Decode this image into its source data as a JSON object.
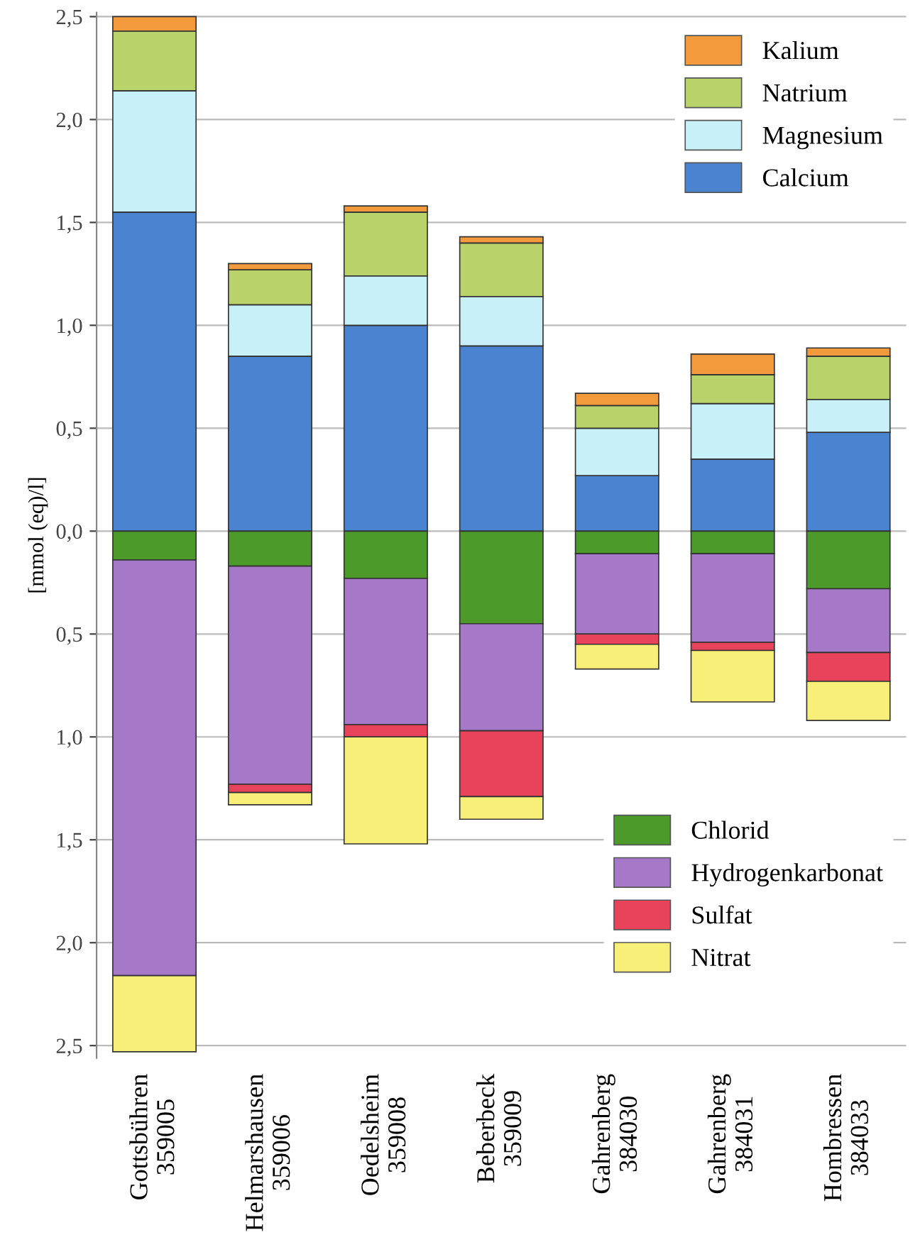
{
  "chart_data": {
    "type": "bar",
    "stacked": true,
    "ylabel": "[mmol (eq)/l]",
    "categories": [
      "Gottsbühren\n359005",
      "Helmarshausen\n359006",
      "Oedelsheim\n359008",
      "Beberbeck\n359009",
      "Gahrenberg\n384030",
      "Gahrenberg\n384031",
      "Hombressen\n384033"
    ],
    "series": [
      {
        "name": "Calcium",
        "color": "#4a84d0",
        "values": [
          1.55,
          0.85,
          1.0,
          0.9,
          0.27,
          0.35,
          0.48
        ]
      },
      {
        "name": "Magnesium",
        "color": "#c8f0f8",
        "values": [
          0.59,
          0.25,
          0.24,
          0.24,
          0.23,
          0.27,
          0.16
        ]
      },
      {
        "name": "Natrium",
        "color": "#b9d36a",
        "values": [
          0.29,
          0.17,
          0.31,
          0.26,
          0.11,
          0.14,
          0.21
        ]
      },
      {
        "name": "Kalium",
        "color": "#f39a3c",
        "values": [
          0.07,
          0.03,
          0.03,
          0.03,
          0.06,
          0.1,
          0.04
        ]
      },
      {
        "name": "Chlorid",
        "color": "#4c9a2a",
        "values": [
          -0.14,
          -0.17,
          -0.23,
          -0.45,
          -0.11,
          -0.11,
          -0.28
        ]
      },
      {
        "name": "Hydrogenkarbonat",
        "color": "#a678c8",
        "values": [
          -2.02,
          -1.06,
          -0.71,
          -0.52,
          -0.39,
          -0.43,
          -0.31
        ]
      },
      {
        "name": "Sulfat",
        "color": "#e8435a",
        "values": [
          null,
          -0.04,
          -0.06,
          -0.32,
          -0.05,
          -0.04,
          -0.14
        ]
      },
      {
        "name": "Nitrat",
        "color": "#f8ef78",
        "values": [
          -0.37,
          -0.06,
          -0.52,
          -0.11,
          -0.12,
          -0.25,
          -0.19
        ]
      }
    ],
    "ylim": [
      -2.56,
      2.52
    ],
    "yticks": [
      {
        "value": -2.5,
        "label": "2,5"
      },
      {
        "value": -2.0,
        "label": "2,0"
      },
      {
        "value": -1.5,
        "label": "1,5"
      },
      {
        "value": -1.0,
        "label": "1,0"
      },
      {
        "value": -0.5,
        "label": "0,5"
      },
      {
        "value": 0,
        "label": "0,0"
      },
      {
        "value": 0.5,
        "label": "0,5"
      },
      {
        "value": 1.0,
        "label": "1,0"
      },
      {
        "value": 1.5,
        "label": "1,5"
      },
      {
        "value": 2.0,
        "label": "2,0"
      },
      {
        "value": 2.5,
        "label": "2,5"
      }
    ],
    "grid": "y",
    "legend": "right"
  }
}
